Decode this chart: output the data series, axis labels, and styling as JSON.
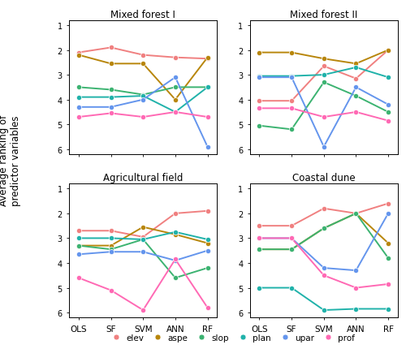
{
  "titles": [
    "Mixed forest I",
    "Mixed forest II",
    "Agricultural field",
    "Coastal dune"
  ],
  "x_labels": [
    "OLS",
    "SF",
    "SVM",
    "ANN",
    "RF"
  ],
  "variables": [
    "elev",
    "aspe",
    "slop",
    "plan",
    "upar",
    "prof"
  ],
  "colors": {
    "elev": "#F08080",
    "aspe": "#B8860B",
    "slop": "#3CB371",
    "plan": "#20B2AA",
    "upar": "#6495ED",
    "prof": "#FF69B4"
  },
  "data": {
    "Mixed forest I": {
      "elev": [
        2.1,
        1.9,
        2.2,
        2.3,
        2.35
      ],
      "aspe": [
        2.2,
        2.55,
        2.55,
        4.0,
        2.3
      ],
      "slop": [
        3.5,
        3.6,
        3.8,
        3.5,
        3.5
      ],
      "plan": [
        3.9,
        3.9,
        3.85,
        4.5,
        3.5
      ],
      "upar": [
        4.3,
        4.3,
        4.0,
        3.1,
        5.9
      ],
      "prof": [
        4.7,
        4.55,
        4.7,
        4.5,
        4.7
      ]
    },
    "Mixed forest II": {
      "elev": [
        4.05,
        4.05,
        2.65,
        3.15,
        2.0
      ],
      "aspe": [
        2.1,
        2.1,
        2.35,
        2.55,
        2.0
      ],
      "slop": [
        5.05,
        5.2,
        3.3,
        3.85,
        4.5
      ],
      "plan": [
        3.05,
        3.05,
        3.0,
        2.7,
        3.1
      ],
      "upar": [
        3.1,
        3.1,
        5.9,
        3.5,
        4.2
      ],
      "prof": [
        4.35,
        4.35,
        4.7,
        4.5,
        4.85
      ]
    },
    "Agricultural field": {
      "elev": [
        2.7,
        2.7,
        2.95,
        2.0,
        1.9
      ],
      "aspe": [
        3.3,
        3.3,
        2.55,
        2.85,
        3.2
      ],
      "slop": [
        3.3,
        3.45,
        3.05,
        4.6,
        4.2
      ],
      "plan": [
        3.0,
        3.0,
        3.05,
        2.75,
        3.05
      ],
      "upar": [
        3.65,
        3.55,
        3.55,
        3.9,
        3.5
      ],
      "prof": [
        4.6,
        5.1,
        5.9,
        3.85,
        5.8
      ]
    },
    "Coastal dune": {
      "elev": [
        2.5,
        2.5,
        1.8,
        2.0,
        1.6
      ],
      "aspe": [
        3.45,
        3.45,
        2.6,
        2.0,
        3.2
      ],
      "slop": [
        3.45,
        3.45,
        2.6,
        2.0,
        3.8
      ],
      "plan": [
        5.0,
        5.0,
        5.9,
        5.85,
        5.85
      ],
      "upar": [
        3.0,
        3.0,
        4.2,
        4.3,
        2.0
      ],
      "prof": [
        3.0,
        3.0,
        4.5,
        5.0,
        4.85
      ]
    }
  },
  "ylim": [
    0.8,
    6.2
  ],
  "yticks": [
    1,
    2,
    3,
    4,
    5,
    6
  ],
  "ylabel": "Average ranking of\npredictor variables",
  "background_color": "#FFFFFF"
}
